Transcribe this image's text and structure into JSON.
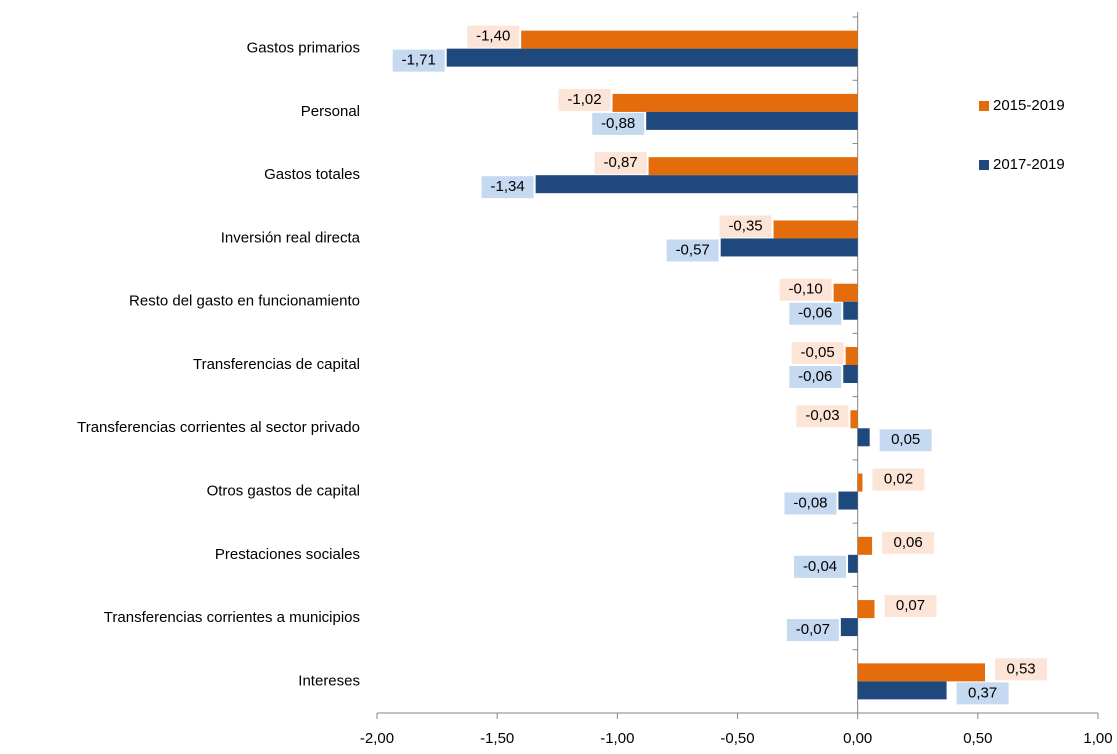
{
  "chart_data": {
    "type": "barh",
    "categories": [
      "Gastos primarios",
      "Personal",
      "Gastos totales",
      "Inversión real directa",
      "Resto del gasto en funcionamiento",
      "Transferencias de capital",
      "Transferencias corrientes al sector privado",
      "Otros gastos de capital",
      "Prestaciones sociales",
      "Transferencias corrientes a municipios",
      "Intereses"
    ],
    "series": [
      {
        "name": "2015-2019",
        "color": "#e46c0a",
        "label_bg": "#fce4d6",
        "values": [
          -1.4,
          -1.02,
          -0.87,
          -0.35,
          -0.1,
          -0.05,
          -0.03,
          0.02,
          0.06,
          0.07,
          0.53
        ],
        "value_labels": [
          "-1,40",
          "-1,02",
          "-0,87",
          "-0,35",
          "-0,10",
          "-0,05",
          "-0,03",
          "0,02",
          "0,06",
          "0,07",
          "0,53"
        ]
      },
      {
        "name": "2017-2019",
        "color": "#1f497d",
        "label_bg": "#c5d9f1",
        "values": [
          -1.71,
          -0.88,
          -1.34,
          -0.57,
          -0.06,
          -0.06,
          0.05,
          -0.08,
          -0.04,
          -0.07,
          0.37
        ],
        "value_labels": [
          "-1,71",
          "-0,88",
          "-1,34",
          "-0,57",
          "-0,06",
          "-0,06",
          "0,05",
          "-0,08",
          "-0,04",
          "-0,07",
          "0,37"
        ]
      }
    ],
    "xlim": [
      -2,
      1
    ],
    "xticks": [
      {
        "value": -2,
        "label": "-2,00"
      },
      {
        "value": -1.5,
        "label": "-1,50"
      },
      {
        "value": -1,
        "label": "-1,00"
      },
      {
        "value": -0.5,
        "label": "-0,50"
      },
      {
        "value": 0,
        "label": "0,00"
      },
      {
        "value": 0.5,
        "label": "0,50"
      },
      {
        "value": 1,
        "label": "1,00"
      }
    ],
    "legend": "right"
  }
}
